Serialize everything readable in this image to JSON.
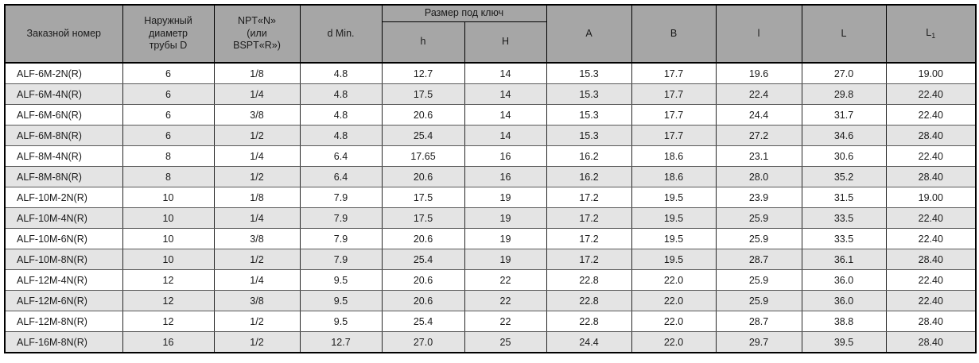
{
  "table": {
    "kind": "table",
    "header": {
      "order_number": "Заказной номер",
      "outer_diameter": "Наружный\nдиаметр\nтрубы D",
      "thread": "NPT«N»\n(или\nBSPT«R»)",
      "d_min": "d Min.",
      "wrench_group": "Размер под ключ",
      "h_small": "h",
      "h_big": "H",
      "a": "A",
      "b": "B",
      "l_small": "l",
      "l_big": "L",
      "l1_base": "L",
      "l1_sub": "1"
    },
    "rows": [
      [
        "ALF-6M-2N(R)",
        "6",
        "1/8",
        "4.8",
        "12.7",
        "14",
        "15.3",
        "17.7",
        "19.6",
        "27.0",
        "19.00"
      ],
      [
        "ALF-6M-4N(R)",
        "6",
        "1/4",
        "4.8",
        "17.5",
        "14",
        "15.3",
        "17.7",
        "22.4",
        "29.8",
        "22.40"
      ],
      [
        "ALF-6M-6N(R)",
        "6",
        "3/8",
        "4.8",
        "20.6",
        "14",
        "15.3",
        "17.7",
        "24.4",
        "31.7",
        "22.40"
      ],
      [
        "ALF-6M-8N(R)",
        "6",
        "1/2",
        "4.8",
        "25.4",
        "14",
        "15.3",
        "17.7",
        "27.2",
        "34.6",
        "28.40"
      ],
      [
        "ALF-8M-4N(R)",
        "8",
        "1/4",
        "6.4",
        "17.65",
        "16",
        "16.2",
        "18.6",
        "23.1",
        "30.6",
        "22.40"
      ],
      [
        "ALF-8M-8N(R)",
        "8",
        "1/2",
        "6.4",
        "20.6",
        "16",
        "16.2",
        "18.6",
        "28.0",
        "35.2",
        "28.40"
      ],
      [
        "ALF-10M-2N(R)",
        "10",
        "1/8",
        "7.9",
        "17.5",
        "19",
        "17.2",
        "19.5",
        "23.9",
        "31.5",
        "19.00"
      ],
      [
        "ALF-10M-4N(R)",
        "10",
        "1/4",
        "7.9",
        "17.5",
        "19",
        "17.2",
        "19.5",
        "25.9",
        "33.5",
        "22.40"
      ],
      [
        "ALF-10M-6N(R)",
        "10",
        "3/8",
        "7.9",
        "20.6",
        "19",
        "17.2",
        "19.5",
        "25.9",
        "33.5",
        "22.40"
      ],
      [
        "ALF-10M-8N(R)",
        "10",
        "1/2",
        "7.9",
        "25.4",
        "19",
        "17.2",
        "19.5",
        "28.7",
        "36.1",
        "28.40"
      ],
      [
        "ALF-12M-4N(R)",
        "12",
        "1/4",
        "9.5",
        "20.6",
        "22",
        "22.8",
        "22.0",
        "25.9",
        "36.0",
        "22.40"
      ],
      [
        "ALF-12M-6N(R)",
        "12",
        "3/8",
        "9.5",
        "20.6",
        "22",
        "22.8",
        "22.0",
        "25.9",
        "36.0",
        "22.40"
      ],
      [
        "ALF-12M-8N(R)",
        "12",
        "1/2",
        "9.5",
        "25.4",
        "22",
        "22.8",
        "22.0",
        "28.7",
        "38.8",
        "28.40"
      ],
      [
        "ALF-16M-8N(R)",
        "16",
        "1/2",
        "12.7",
        "27.0",
        "25",
        "24.4",
        "22.0",
        "29.7",
        "39.5",
        "28.40"
      ]
    ],
    "colors": {
      "header_bg": "#a6a6a6",
      "stripe_bg": "#e4e4e4",
      "row_bg": "#ffffff",
      "outer_border": "#000000",
      "row_line": "#595959",
      "column_line": "#262626",
      "text": "#1a1a1a"
    }
  }
}
